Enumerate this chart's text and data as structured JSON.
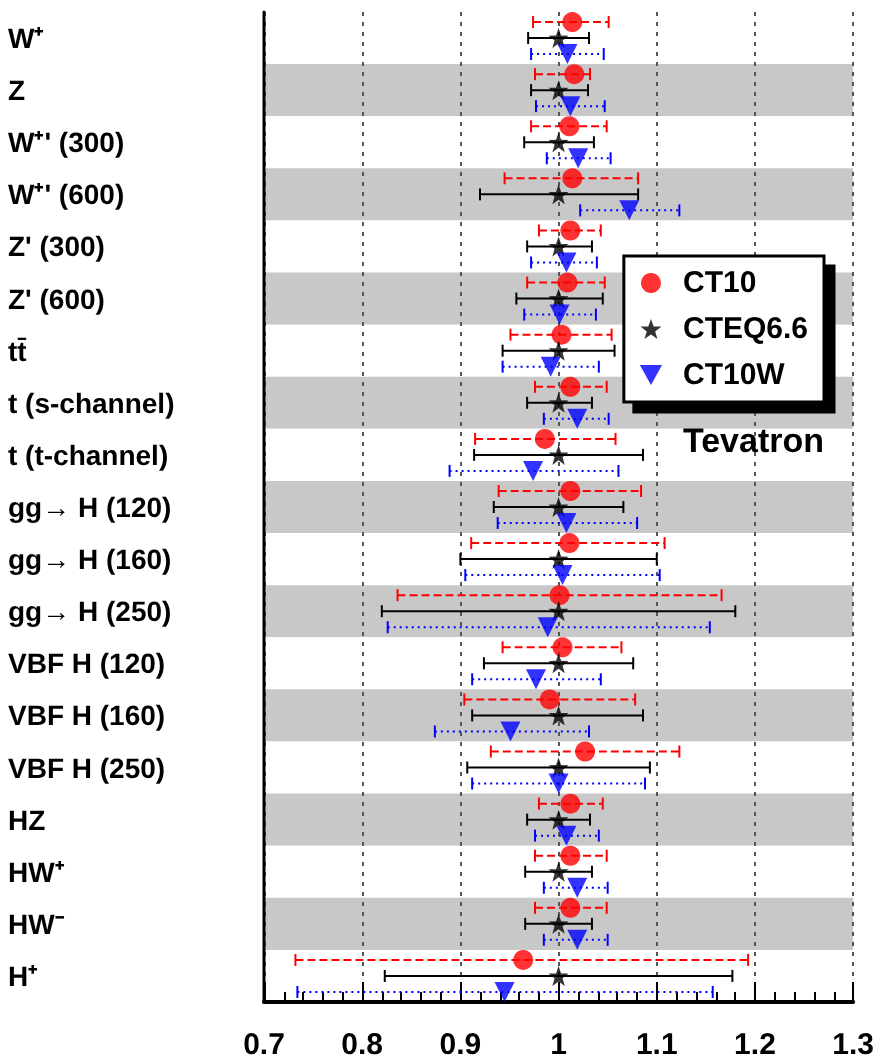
{
  "chart_data": {
    "type": "scatter",
    "orientation": "horizontal",
    "categories": [
      "W⁺",
      "Z",
      "W⁺' (300)",
      "W⁺' (600)",
      "Z' (300)",
      "Z' (600)",
      "tt̄",
      "t (s-channel)",
      "t (t-channel)",
      "gg→ H (120)",
      "gg→ H (160)",
      "gg→ H (250)",
      "VBF H (120)",
      "VBF H (160)",
      "VBF H (250)",
      "HZ",
      "HW⁺",
      "HW⁻",
      "H⁺"
    ],
    "series": [
      {
        "name": "CT10",
        "color": "#ff0000",
        "marker": "circle",
        "line_style": "dashed",
        "values": [
          1.014,
          1.016,
          1.011,
          1.014,
          1.012,
          1.009,
          1.003,
          1.012,
          0.986,
          1.012,
          1.011,
          1.001,
          1.004,
          0.991,
          1.027,
          1.012,
          1.012,
          1.012,
          0.964
        ],
        "errors": [
          [
            0.974,
            1.051
          ],
          [
            0.976,
            1.032
          ],
          [
            0.972,
            1.049
          ],
          [
            0.945,
            1.081
          ],
          [
            0.98,
            1.043
          ],
          [
            0.968,
            1.047
          ],
          [
            0.951,
            1.054
          ],
          [
            0.976,
            1.049
          ],
          [
            0.915,
            1.058
          ],
          [
            0.939,
            1.084
          ],
          [
            0.911,
            1.108
          ],
          [
            0.836,
            1.166
          ],
          [
            0.943,
            1.064
          ],
          [
            0.904,
            1.078
          ],
          [
            0.931,
            1.123
          ],
          [
            0.98,
            1.045
          ],
          [
            0.976,
            1.049
          ],
          [
            0.976,
            1.049
          ],
          [
            0.732,
            1.193
          ]
        ]
      },
      {
        "name": "CTEQ6.6",
        "color": "#000000",
        "marker": "star",
        "line_style": "solid",
        "values": [
          1,
          1,
          1,
          1,
          1,
          1,
          1,
          1,
          1,
          1,
          1,
          1,
          1,
          1,
          1,
          1,
          1,
          1,
          1
        ],
        "errors": [
          [
            0.969,
            1.031
          ],
          [
            0.972,
            1.03
          ],
          [
            0.965,
            1.036
          ],
          [
            0.92,
            1.081
          ],
          [
            0.968,
            1.034
          ],
          [
            0.957,
            1.045
          ],
          [
            0.943,
            1.057
          ],
          [
            0.968,
            1.034
          ],
          [
            0.914,
            1.086
          ],
          [
            0.934,
            1.066
          ],
          [
            0.9,
            1.1
          ],
          [
            0.82,
            1.18
          ],
          [
            0.924,
            1.076
          ],
          [
            0.912,
            1.086
          ],
          [
            0.907,
            1.093
          ],
          [
            0.968,
            1.032
          ],
          [
            0.966,
            1.034
          ],
          [
            0.966,
            1.034
          ],
          [
            0.823,
            1.177
          ]
        ]
      },
      {
        "name": "CT10W",
        "color": "#0000ff",
        "marker": "triangle",
        "line_style": "dotted",
        "values": [
          1.009,
          1.012,
          1.02,
          1.072,
          1.008,
          1.001,
          0.992,
          1.019,
          0.974,
          1.008,
          1.004,
          0.989,
          0.977,
          0.951,
          1,
          1.008,
          1.019,
          1.019,
          0.945
        ],
        "errors": [
          [
            0.972,
            1.046
          ],
          [
            0.977,
            1.047
          ],
          [
            0.988,
            1.053
          ],
          [
            1.022,
            1.123
          ],
          [
            0.972,
            1.039
          ],
          [
            0.965,
            1.038
          ],
          [
            0.943,
            1.041
          ],
          [
            0.985,
            1.051
          ],
          [
            0.889,
            1.061
          ],
          [
            0.938,
            1.08
          ],
          [
            0.905,
            1.103
          ],
          [
            0.826,
            1.154
          ],
          [
            0.912,
            1.043
          ],
          [
            0.874,
            1.031
          ],
          [
            0.912,
            1.088
          ],
          [
            0.976,
            1.041
          ],
          [
            0.985,
            1.05
          ],
          [
            0.985,
            1.05
          ],
          [
            0.734,
            1.157
          ]
        ]
      }
    ],
    "xlim": [
      0.7,
      1.3
    ],
    "xticks": [
      0.7,
      0.8,
      0.9,
      1,
      1.1,
      1.2,
      1.3
    ],
    "grid": "x",
    "legend": "right",
    "annotations": [
      "Tevatron"
    ]
  }
}
